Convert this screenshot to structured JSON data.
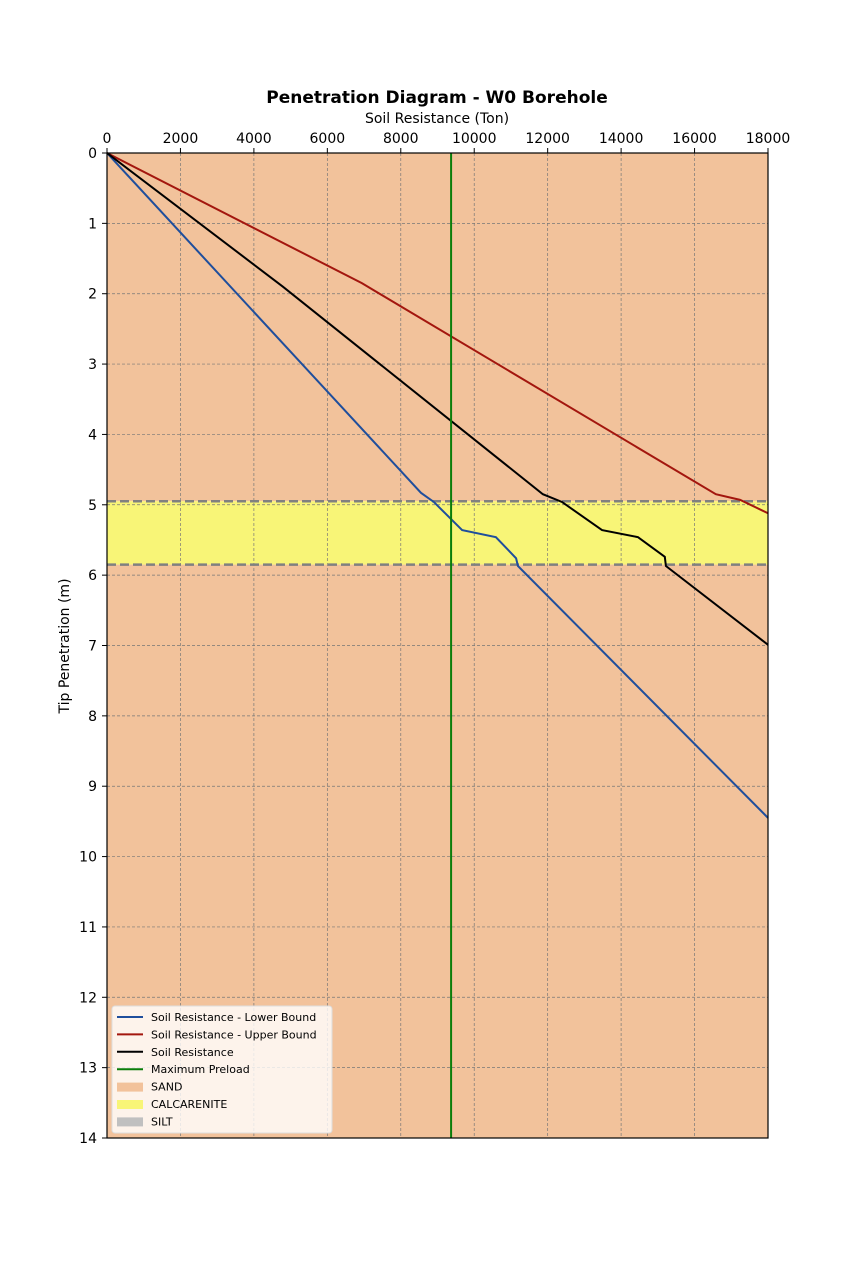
{
  "chart_data": {
    "type": "line",
    "title": "Penetration Diagram - W0 Borehole",
    "xlabel": "Soil Resistance (Ton)",
    "ylabel": "Tip Penetration (m)",
    "xlim": [
      0,
      18000
    ],
    "ylim": [
      14,
      0
    ],
    "x_axis_position": "top",
    "y_inverted": true,
    "grid": true,
    "xticks": [
      0,
      2000,
      4000,
      6000,
      8000,
      10000,
      12000,
      14000,
      16000,
      18000
    ],
    "yticks": [
      0,
      1,
      2,
      3,
      4,
      5,
      6,
      7,
      8,
      9,
      10,
      11,
      12,
      13,
      14
    ],
    "layers": [
      {
        "name": "SAND",
        "top": 0,
        "bottom": 4.95,
        "color": "#f2c29b"
      },
      {
        "name": "CALCARENITE",
        "top": 4.95,
        "bottom": 5.85,
        "color": "#f8f577"
      },
      {
        "name": "SAND",
        "top": 5.85,
        "bottom": 14,
        "color": "#f2c29b"
      }
    ],
    "layer_boundaries": [
      4.95,
      5.85
    ],
    "series": [
      {
        "name": "Soil Resistance - Lower Bound",
        "color": "#1f4e9c",
        "points": [
          [
            0,
            0
          ],
          [
            8550,
            4.83
          ],
          [
            8900,
            4.96
          ],
          [
            9670,
            5.36
          ],
          [
            10590,
            5.46
          ],
          [
            11140,
            5.76
          ],
          [
            11190,
            5.87
          ],
          [
            18000,
            9.45
          ]
        ]
      },
      {
        "name": "Soil Resistance - Upper Bound",
        "color": "#a3160e",
        "points": [
          [
            0,
            0
          ],
          [
            6940,
            1.85
          ],
          [
            16580,
            4.85
          ],
          [
            17240,
            4.93
          ],
          [
            18000,
            5.12
          ]
        ]
      },
      {
        "name": "Soil Resistance",
        "color": "#000000",
        "points": [
          [
            0,
            0
          ],
          [
            4790,
            1.9
          ],
          [
            11870,
            4.85
          ],
          [
            12390,
            4.96
          ],
          [
            13480,
            5.36
          ],
          [
            14460,
            5.46
          ],
          [
            15190,
            5.74
          ],
          [
            15220,
            5.87
          ],
          [
            18000,
            6.99
          ]
        ]
      },
      {
        "name": "Maximum Preload",
        "color": "#0a7d0a",
        "points": [
          [
            9370,
            0
          ],
          [
            9370,
            14
          ]
        ]
      }
    ],
    "legend": {
      "placement": "lower-left",
      "entries": [
        {
          "label": "Soil Resistance - Lower Bound",
          "kind": "line",
          "color": "#1f4e9c"
        },
        {
          "label": "Soil Resistance - Upper Bound",
          "kind": "line",
          "color": "#a3160e"
        },
        {
          "label": "Soil Resistance",
          "kind": "line",
          "color": "#000000"
        },
        {
          "label": "Maximum Preload",
          "kind": "line",
          "color": "#0a7d0a"
        },
        {
          "label": "SAND",
          "kind": "patch",
          "color": "#f2c29b"
        },
        {
          "label": "CALCARENITE",
          "kind": "patch",
          "color": "#f8f577"
        },
        {
          "label": "SILT",
          "kind": "patch",
          "color": "#c0c0c0"
        }
      ]
    }
  }
}
